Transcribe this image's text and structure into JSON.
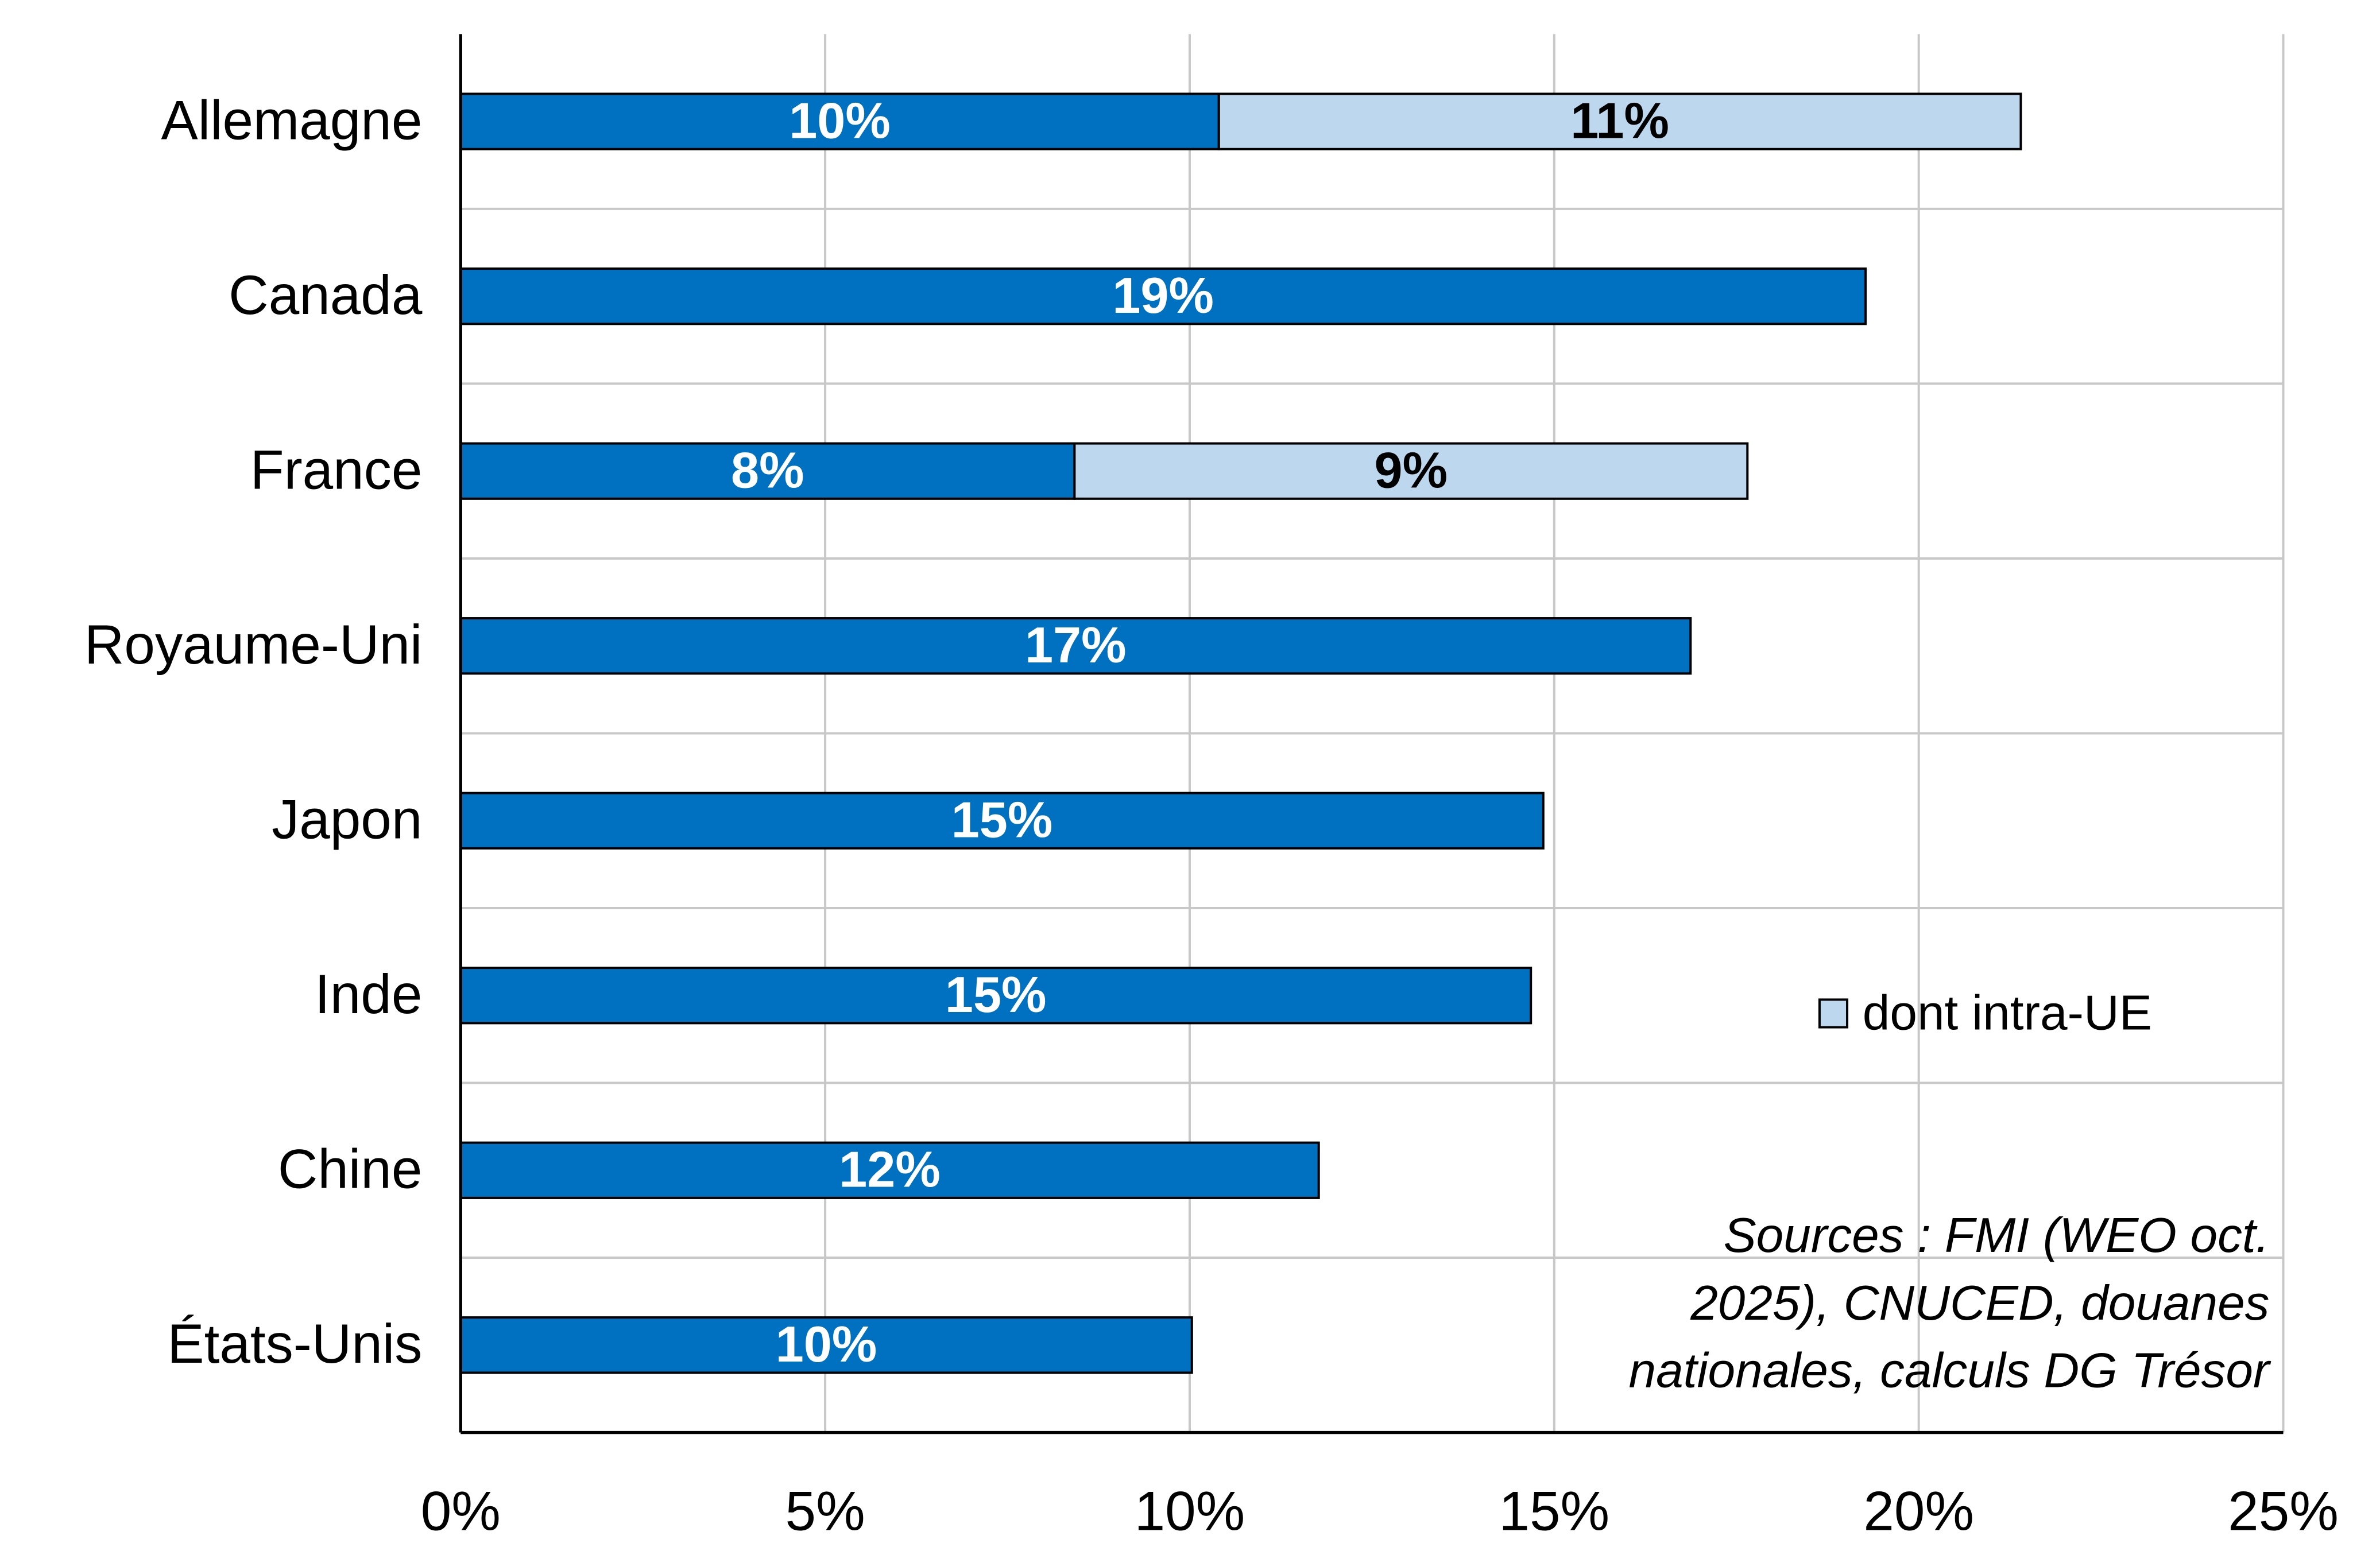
{
  "chart_data": {
    "type": "hbar-stacked",
    "categories": [
      "Allemagne",
      "Canada",
      "France",
      "Royaume-Uni",
      "Japon",
      "Inde",
      "Chine",
      "États-Unis"
    ],
    "series": [
      {
        "color": "#0070c0",
        "label_color": "#ffffff",
        "values": [
          10.4,
          19.27,
          8.42,
          16.87,
          14.85,
          14.68,
          11.77,
          10.03
        ],
        "value_labels": [
          "10%",
          "19%",
          "8%",
          "17%",
          "15%",
          "15%",
          "12%",
          "10%"
        ]
      },
      {
        "name": "dont intra-UE",
        "color": "#bdd7ee",
        "label_color": "#000000",
        "values": [
          11.0,
          null,
          9.23,
          null,
          null,
          null,
          null,
          null
        ],
        "value_labels": [
          "11%",
          null,
          "9%",
          null,
          null,
          null,
          null,
          null
        ]
      }
    ],
    "xlim": [
      0,
      25
    ],
    "xticks": [
      {
        "value": 0,
        "label": "0%"
      },
      {
        "value": 5,
        "label": "5%"
      },
      {
        "value": 10,
        "label": "10%"
      },
      {
        "value": 15,
        "label": "15%"
      },
      {
        "value": 20,
        "label": "20%"
      },
      {
        "value": 25,
        "label": "25%"
      }
    ],
    "grid": true,
    "annotation": [
      "Sources : FMI (WEO oct.",
      "2025), CNUCED, douanes",
      "nationales, calculs DG Trésor"
    ]
  }
}
